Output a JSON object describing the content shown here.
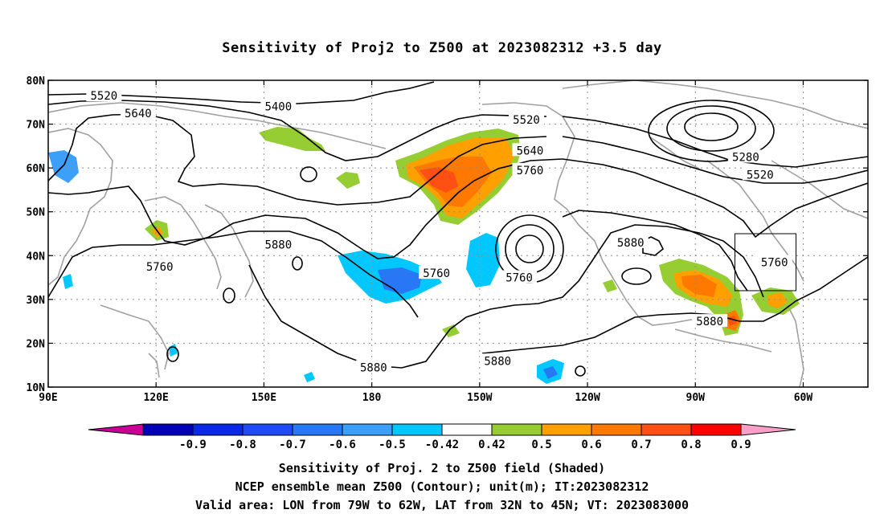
{
  "title": "Sensitivity of Proj2 to Z500 at 2023082312 +3.5 day",
  "lat_ticks": [
    {
      "value": 80,
      "label": "80N"
    },
    {
      "value": 70,
      "label": "70N"
    },
    {
      "value": 60,
      "label": "60N"
    },
    {
      "value": 50,
      "label": "50N"
    },
    {
      "value": 40,
      "label": "40N"
    },
    {
      "value": 30,
      "label": "30N"
    },
    {
      "value": 20,
      "label": "20N"
    },
    {
      "value": 10,
      "label": "10N"
    }
  ],
  "lon_ticks": [
    {
      "value": 90,
      "label": "90E"
    },
    {
      "value": 120,
      "label": "120E"
    },
    {
      "value": 150,
      "label": "150E"
    },
    {
      "value": 180,
      "label": "180"
    },
    {
      "value": 210,
      "label": "150W"
    },
    {
      "value": 240,
      "label": "120W"
    },
    {
      "value": 270,
      "label": "90W"
    },
    {
      "value": 300,
      "label": "60W"
    }
  ],
  "map_extent": {
    "lon_min": 90,
    "lon_max": 318,
    "lat_min": 10,
    "lat_max": 80
  },
  "contour_labels": [
    {
      "text": "5520",
      "lon": 105.5,
      "lat": 76.5
    },
    {
      "text": "5640",
      "lon": 115,
      "lat": 72.5
    },
    {
      "text": "5400",
      "lon": 154,
      "lat": 74
    },
    {
      "text": "5520",
      "lon": 223,
      "lat": 71
    },
    {
      "text": "5640",
      "lon": 224,
      "lat": 64
    },
    {
      "text": "5760",
      "lon": 224,
      "lat": 59.5
    },
    {
      "text": "5280",
      "lon": 284,
      "lat": 62.5
    },
    {
      "text": "5520",
      "lon": 288,
      "lat": 58.5
    },
    {
      "text": "5760",
      "lon": 121,
      "lat": 37.5
    },
    {
      "text": "5880",
      "lon": 154,
      "lat": 42.5
    },
    {
      "text": "5760",
      "lon": 198,
      "lat": 36
    },
    {
      "text": "5760",
      "lon": 221,
      "lat": 35
    },
    {
      "text": "5880",
      "lon": 252,
      "lat": 43
    },
    {
      "text": "5760",
      "lon": 292,
      "lat": 38.5
    },
    {
      "text": "5880",
      "lon": 180.5,
      "lat": 14.5
    },
    {
      "text": "5880",
      "lon": 215,
      "lat": 16
    },
    {
      "text": "5880",
      "lon": 274,
      "lat": 25
    }
  ],
  "valid_area": {
    "lon_min": 281,
    "lon_max": 298,
    "lat_min": 32,
    "lat_max": 45
  },
  "colorbar": {
    "colors": [
      "#c80096",
      "#0000b4",
      "#0a28e6",
      "#1e4bf5",
      "#2878f5",
      "#3ca0fa",
      "#00c8ff",
      "#ffffff",
      "#96cd32",
      "#ffa000",
      "#ff7800",
      "#ff5014",
      "#ff0000",
      "#f8a0c8"
    ],
    "labels": [
      "-0.9",
      "-0.8",
      "-0.7",
      "-0.6",
      "-0.5",
      "-0.42",
      "0.42",
      "0.5",
      "0.6",
      "0.7",
      "0.8",
      "0.9"
    ]
  },
  "captions": {
    "line1": "Sensitivity of Proj. 2 to Z500 field (Shaded)",
    "line2": "NCEP ensemble mean Z500 (Contour); unit(m); IT:2023082312",
    "line3": "Valid area: LON from 79W to 62W, LAT from 32N to 45N; VT: 2023083000"
  }
}
